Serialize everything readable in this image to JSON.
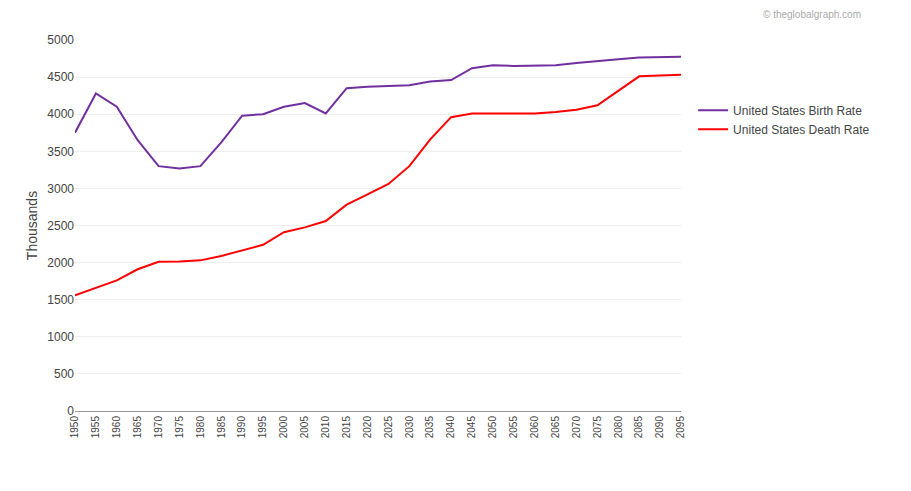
{
  "chart_data": {
    "type": "line",
    "x": [
      1950,
      1955,
      1960,
      1965,
      1970,
      1975,
      1980,
      1985,
      1990,
      1995,
      2000,
      2005,
      2010,
      2015,
      2020,
      2025,
      2030,
      2035,
      2040,
      2045,
      2050,
      2055,
      2060,
      2065,
      2070,
      2075,
      2080,
      2085,
      2090,
      2095
    ],
    "series": [
      {
        "name": "United States Birth Rate",
        "color": "#7030A0",
        "values": [
          3750,
          4280,
          4100,
          3650,
          3300,
          3270,
          3300,
          3620,
          3980,
          4000,
          4100,
          4150,
          4010,
          4350,
          4370,
          4380,
          4390,
          4440,
          4460,
          4620,
          4660,
          4650,
          4660,
          4660,
          4690,
          4710,
          4740,
          4765,
          4775,
          4775
        ]
      },
      {
        "name": "United States Death Rate",
        "color": "#FF0000",
        "values": [
          1560,
          1660,
          1760,
          1910,
          2010,
          2015,
          2030,
          2090,
          2170,
          2240,
          2410,
          2475,
          2560,
          2780,
          2920,
          3060,
          3300,
          3660,
          3960,
          4010,
          4010,
          4010,
          4010,
          4030,
          4060,
          4120,
          4320,
          4510,
          4520,
          4530
        ]
      }
    ],
    "ylabel": "Thousands",
    "xlim": [
      1950,
      2095
    ],
    "xticks": [
      1950,
      1955,
      1960,
      1965,
      1970,
      1975,
      1980,
      1985,
      1990,
      1995,
      2000,
      2005,
      2010,
      2015,
      2020,
      2025,
      2030,
      2035,
      2040,
      2045,
      2050,
      2055,
      2060,
      2065,
      2070,
      2075,
      2080,
      2085,
      2090,
      2095
    ],
    "ylim": [
      0,
      5000
    ],
    "yticks": [
      0,
      500,
      1000,
      1500,
      2000,
      2500,
      3000,
      3500,
      4000,
      4500,
      5000
    ],
    "grid": "y",
    "legend": "right",
    "annotations": [
      "© theglobalgraph.com"
    ]
  }
}
